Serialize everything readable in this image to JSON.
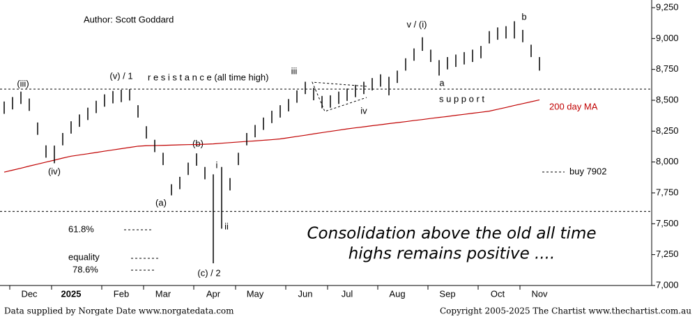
{
  "chart_data": {
    "type": "hilo",
    "author": "Author: Scott Goddard",
    "categories": [
      null,
      null,
      null,
      "Dec",
      null,
      null,
      null,
      null,
      "2025",
      null,
      null,
      null,
      null,
      null,
      "Feb",
      null,
      null,
      null,
      null,
      "Mar",
      null,
      null,
      null,
      null,
      null,
      "Apr",
      null,
      null,
      null,
      null,
      "May",
      null,
      null,
      null,
      null,
      null,
      "Jun",
      null,
      null,
      null,
      null,
      "Jul",
      null,
      null,
      null,
      null,
      null,
      "Aug",
      null,
      null,
      null,
      null,
      null,
      "Sep",
      null,
      null,
      null,
      null,
      null,
      "Oct",
      null,
      null,
      null,
      null,
      "Nov"
    ],
    "high": [
      8490,
      8526,
      8570,
      8514,
      8320,
      8135,
      8133,
      8235,
      8330,
      8385,
      8440,
      8496,
      8548,
      8575,
      8585,
      8590,
      8460,
      8290,
      8180,
      8075,
      7820,
      7880,
      7995,
      8070,
      7960,
      7900,
      7960,
      7870,
      8075,
      8235,
      8300,
      8360,
      8415,
      8460,
      8510,
      8580,
      8650,
      8600,
      8535,
      8540,
      8570,
      8595,
      8625,
      8650,
      8680,
      8710,
      8690,
      8740,
      8840,
      8920,
      9010,
      8910,
      8825,
      8850,
      8870,
      8890,
      8910,
      8940,
      9060,
      9090,
      9100,
      9140,
      9070,
      8950,
      8850
    ],
    "low": [
      8390,
      8426,
      8470,
      8414,
      8220,
      8035,
      7990,
      8135,
      8230,
      8285,
      8340,
      8396,
      8448,
      8475,
      8485,
      8498,
      8360,
      8190,
      8080,
      7975,
      7730,
      7780,
      7895,
      7970,
      7860,
      7180,
      7460,
      7770,
      7975,
      8135,
      8200,
      8260,
      8315,
      8360,
      8410,
      8480,
      8550,
      8500,
      8435,
      8440,
      8470,
      8495,
      8525,
      8550,
      8580,
      8610,
      8540,
      8640,
      8740,
      8820,
      8900,
      8810,
      8700,
      8750,
      8770,
      8790,
      8810,
      8840,
      8960,
      8990,
      9000,
      9000,
      8970,
      8850,
      8740
    ],
    "color": "#000000",
    "ma": {
      "name": "200 day MA",
      "color": "#c00000",
      "values": [
        7918,
        7934,
        7950,
        7967,
        7983,
        7999,
        8015,
        8032,
        8047,
        8057,
        8067,
        8077,
        8088,
        8098,
        8108,
        8118,
        8128,
        8132,
        8133,
        8135,
        8137,
        8139,
        8141,
        8142,
        8144,
        8147,
        8152,
        8157,
        8162,
        8167,
        8171,
        8176,
        8181,
        8187,
        8197,
        8207,
        8217,
        8228,
        8238,
        8248,
        8258,
        8268,
        8277,
        8285,
        8294,
        8302,
        8311,
        8319,
        8327,
        8336,
        8344,
        8353,
        8361,
        8369,
        8378,
        8386,
        8395,
        8403,
        8412,
        8427,
        8442,
        8458,
        8473,
        8488,
        8503
      ]
    },
    "hlines": [
      8590,
      7600
    ],
    "ylim": [
      7000,
      9250
    ],
    "yticks": [
      {
        "value": 7000,
        "label": "7,000"
      },
      {
        "value": 7250,
        "label": "7,250"
      },
      {
        "value": 7500,
        "label": "7,500"
      },
      {
        "value": 7750,
        "label": "7,750"
      },
      {
        "value": 8000,
        "label": "8,000"
      },
      {
        "value": 8250,
        "label": "8,250"
      },
      {
        "value": 8500,
        "label": "8,500"
      },
      {
        "value": 8750,
        "label": "8,750"
      },
      {
        "value": 9000,
        "label": "9,000"
      },
      {
        "value": 9250,
        "label": "9,250"
      }
    ],
    "wave_labels": [
      "(iii)",
      "(iv)",
      "(v) / 1",
      "(a)",
      "(b)",
      "(c) / 2",
      "i",
      "ii",
      "iii",
      "iv",
      "v / (i)",
      "a",
      "b"
    ],
    "resistance": "r e s i s t a n c e (all time high)",
    "support": "s u p p o r t",
    "buy": "buy 7902",
    "fib_labels": [
      "61.8%",
      "equality",
      "78.6%"
    ],
    "comment": [
      "Consolidation above the old all time",
      "highs remains positive ...."
    ],
    "footer_left": "Data supplied by Norgate Date www.norgatedata.com",
    "footer_right": "Copyright 2005-2025 The Chartist www.thechartist.com.au"
  }
}
